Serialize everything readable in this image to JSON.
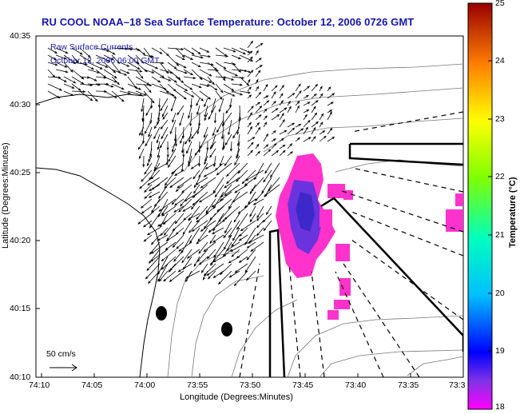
{
  "title": "RU COOL  NOAA–18  Sea Surface Temperature:  October 12, 2006 0726 GMT",
  "overlay": {
    "line1": "Raw Surface Currents",
    "line2": "October 12, 2006 06:00 GMT"
  },
  "axes": {
    "xlabel": "Longitude (Degrees:Minutes)",
    "ylabel": "Latitude (Degrees:Minutes)",
    "x_ticks": [
      "74:10",
      "74:05",
      "74:00",
      "73:55",
      "73:50",
      "73:45",
      "73:40",
      "73:35",
      "73:3"
    ],
    "y_ticks": [
      "40:35",
      "40:30",
      "40:25",
      "40:20",
      "40:15",
      "40:10"
    ]
  },
  "scale_label": "50 cm/s",
  "colorbar": {
    "label": "Temperature (°C)",
    "ticks": [
      "25",
      "24",
      "23",
      "22",
      "21",
      "20",
      "19",
      "18"
    ],
    "min": 18,
    "max": 25
  },
  "colors": {
    "title": "#1515b0",
    "sst_patch": "#ff33cc",
    "sst_core": "#6a33dd"
  }
}
